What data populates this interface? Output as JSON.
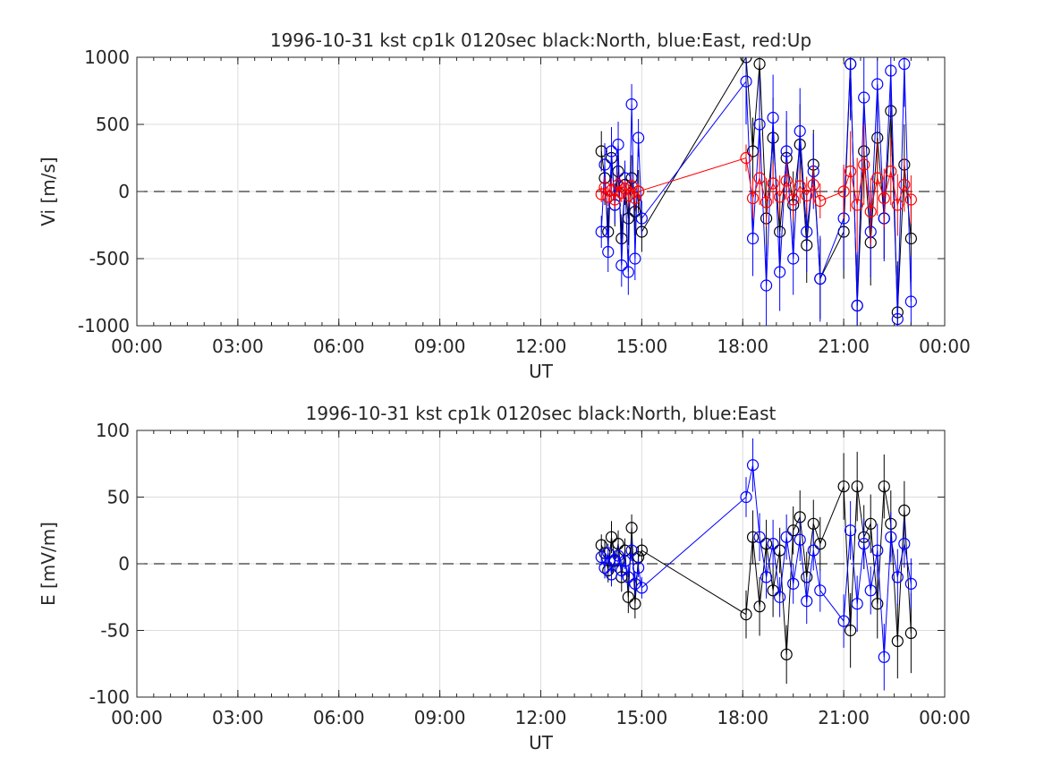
{
  "chart_data": [
    {
      "type": "scatter",
      "title": "1996-10-31 kst cp1k 0120sec black:North, blue:East, red:Up",
      "xlabel": "UT",
      "ylabel": "Vi [m/s]",
      "xlim": [
        0,
        24
      ],
      "ylim": [
        -1000,
        1000
      ],
      "x_tick_labels": [
        "00:00",
        "03:00",
        "06:00",
        "09:00",
        "12:00",
        "15:00",
        "18:00",
        "21:00",
        "00:00"
      ],
      "y_tick_labels": [
        "1000",
        "500",
        "0",
        "-500",
        "-1000"
      ],
      "y_ticks": [
        1000,
        500,
        0,
        -500,
        -1000
      ],
      "grid": true,
      "zero_line": 0,
      "series": [
        {
          "name": "North",
          "color": "#000000",
          "x": [
            13.8,
            13.9,
            14.0,
            14.1,
            14.2,
            14.3,
            14.4,
            14.5,
            14.6,
            14.7,
            14.8,
            14.9,
            15.0,
            18.1,
            18.3,
            18.5,
            18.7,
            18.9,
            19.1,
            19.3,
            19.5,
            19.7,
            19.9,
            20.1,
            20.3,
            21.0,
            21.2,
            21.4,
            21.6,
            21.8,
            22.0,
            22.2,
            22.4,
            22.6,
            22.8,
            23.0
          ],
          "y": [
            300,
            100,
            -300,
            250,
            -100,
            150,
            -350,
            50,
            -200,
            100,
            -150,
            0,
            -300,
            1000,
            300,
            950,
            -200,
            400,
            -300,
            250,
            -100,
            350,
            -400,
            200,
            -650,
            -300,
            950,
            -850,
            300,
            -380,
            400,
            -200,
            600,
            -900,
            200,
            -350
          ],
          "error": [
            150,
            200,
            180,
            220,
            160,
            200,
            180,
            150,
            200,
            170,
            180,
            160,
            150,
            300,
            250,
            350,
            280,
            300,
            260,
            280,
            250,
            300,
            280,
            260,
            300,
            350,
            400,
            380,
            350,
            320,
            360,
            300,
            340,
            380,
            300,
            320
          ]
        },
        {
          "name": "East",
          "color": "#0000ff",
          "x": [
            13.8,
            13.9,
            14.0,
            14.1,
            14.2,
            14.3,
            14.4,
            14.5,
            14.6,
            14.7,
            14.8,
            14.9,
            15.0,
            18.1,
            18.3,
            18.5,
            18.7,
            18.9,
            19.1,
            19.3,
            19.5,
            19.7,
            19.9,
            20.1,
            20.3,
            21.0,
            21.2,
            21.4,
            21.6,
            21.8,
            22.0,
            22.2,
            22.4,
            22.6,
            22.8,
            23.0
          ],
          "y": [
            -300,
            200,
            -450,
            300,
            -100,
            350,
            -550,
            100,
            -600,
            650,
            -500,
            400,
            -200,
            820,
            -350,
            500,
            -700,
            550,
            -600,
            300,
            -500,
            450,
            -300,
            150,
            -650,
            -200,
            950,
            -850,
            700,
            -300,
            800,
            -200,
            900,
            -950,
            950,
            -820
          ],
          "error": [
            120,
            160,
            150,
            180,
            140,
            170,
            160,
            130,
            170,
            150,
            160,
            140,
            130,
            320,
            280,
            360,
            300,
            320,
            290,
            300,
            270,
            320,
            300,
            280,
            320,
            380,
            420,
            400,
            370,
            340,
            380,
            320,
            360,
            400,
            320,
            340
          ]
        },
        {
          "name": "Up",
          "color": "#ff0000",
          "x": [
            13.8,
            13.9,
            14.0,
            14.1,
            14.2,
            14.3,
            14.4,
            14.5,
            14.6,
            14.7,
            14.8,
            14.9,
            18.1,
            18.3,
            18.5,
            18.7,
            18.9,
            19.1,
            19.3,
            19.5,
            19.7,
            19.9,
            20.1,
            20.3,
            21.0,
            21.2,
            21.4,
            21.6,
            21.8,
            22.0,
            22.2,
            22.4,
            22.6,
            22.8,
            23.0
          ],
          "y": [
            -20,
            30,
            -40,
            10,
            -60,
            50,
            -10,
            20,
            -30,
            40,
            -50,
            0,
            250,
            -50,
            100,
            -80,
            60,
            -40,
            80,
            -60,
            40,
            -30,
            50,
            -70,
            0,
            150,
            -100,
            200,
            -150,
            100,
            -50,
            150,
            -100,
            50,
            -60
          ],
          "error": [
            60,
            80,
            70,
            90,
            60,
            80,
            70,
            60,
            80,
            70,
            80,
            60,
            100,
            150,
            200,
            180,
            150,
            160,
            140,
            150,
            130,
            140,
            150,
            130,
            200,
            300,
            350,
            300,
            250,
            280,
            220,
            250,
            230,
            200,
            180
          ]
        }
      ]
    },
    {
      "type": "scatter",
      "title": "1996-10-31 kst cp1k 0120sec black:North, blue:East",
      "xlabel": "UT",
      "ylabel": "E [mV/m]",
      "xlim": [
        0,
        24
      ],
      "ylim": [
        -100,
        100
      ],
      "x_tick_labels": [
        "00:00",
        "03:00",
        "06:00",
        "09:00",
        "12:00",
        "15:00",
        "18:00",
        "21:00",
        "00:00"
      ],
      "y_tick_labels": [
        "100",
        "50",
        "0",
        "-50",
        "-100"
      ],
      "y_ticks": [
        100,
        50,
        0,
        -50,
        -100
      ],
      "grid": true,
      "zero_line": 0,
      "series": [
        {
          "name": "North",
          "color": "#000000",
          "x": [
            13.8,
            13.9,
            14.0,
            14.1,
            14.2,
            14.3,
            14.4,
            14.5,
            14.6,
            14.7,
            14.8,
            14.9,
            15.0,
            18.1,
            18.3,
            18.5,
            18.7,
            18.9,
            19.1,
            19.3,
            19.5,
            19.7,
            19.9,
            20.1,
            20.3,
            21.0,
            21.2,
            21.4,
            21.6,
            21.8,
            22.0,
            22.2,
            22.4,
            22.6,
            22.8,
            23.0
          ],
          "y": [
            14,
            8,
            -5,
            20,
            2,
            15,
            -10,
            10,
            -25,
            27,
            -30,
            5,
            10,
            -38,
            20,
            -32,
            15,
            -20,
            10,
            -68,
            25,
            35,
            -10,
            30,
            15,
            58,
            -50,
            58,
            20,
            30,
            -30,
            58,
            30,
            -58,
            40,
            -52
          ],
          "error": [
            8,
            10,
            9,
            12,
            8,
            10,
            11,
            9,
            12,
            10,
            11,
            8,
            9,
            18,
            20,
            22,
            18,
            20,
            17,
            22,
            18,
            20,
            19,
            18,
            20,
            25,
            28,
            26,
            24,
            22,
            26,
            24,
            25,
            28,
            22,
            30
          ]
        },
        {
          "name": "East",
          "color": "#0000ff",
          "x": [
            13.8,
            13.9,
            14.0,
            14.1,
            14.2,
            14.3,
            14.4,
            14.5,
            14.6,
            14.7,
            14.8,
            14.9,
            15.0,
            18.1,
            18.3,
            18.5,
            18.7,
            18.9,
            19.1,
            19.3,
            19.5,
            19.7,
            19.9,
            20.1,
            20.3,
            21.0,
            21.2,
            21.4,
            21.6,
            21.8,
            22.0,
            22.2,
            22.4,
            22.6,
            22.8,
            23.0
          ],
          "y": [
            5,
            -3,
            8,
            -8,
            3,
            6,
            -5,
            2,
            -10,
            10,
            -15,
            -3,
            -18,
            50,
            74,
            20,
            -10,
            15,
            -25,
            20,
            -15,
            18,
            -28,
            10,
            -20,
            -43,
            25,
            -30,
            15,
            -20,
            10,
            -70,
            20,
            -10,
            15,
            -15
          ],
          "error": [
            6,
            8,
            7,
            9,
            6,
            8,
            7,
            6,
            9,
            8,
            9,
            7,
            8,
            15,
            20,
            18,
            16,
            18,
            15,
            17,
            15,
            16,
            17,
            15,
            16,
            20,
            22,
            21,
            19,
            18,
            20,
            25,
            19,
            21,
            18,
            19
          ]
        }
      ]
    }
  ]
}
